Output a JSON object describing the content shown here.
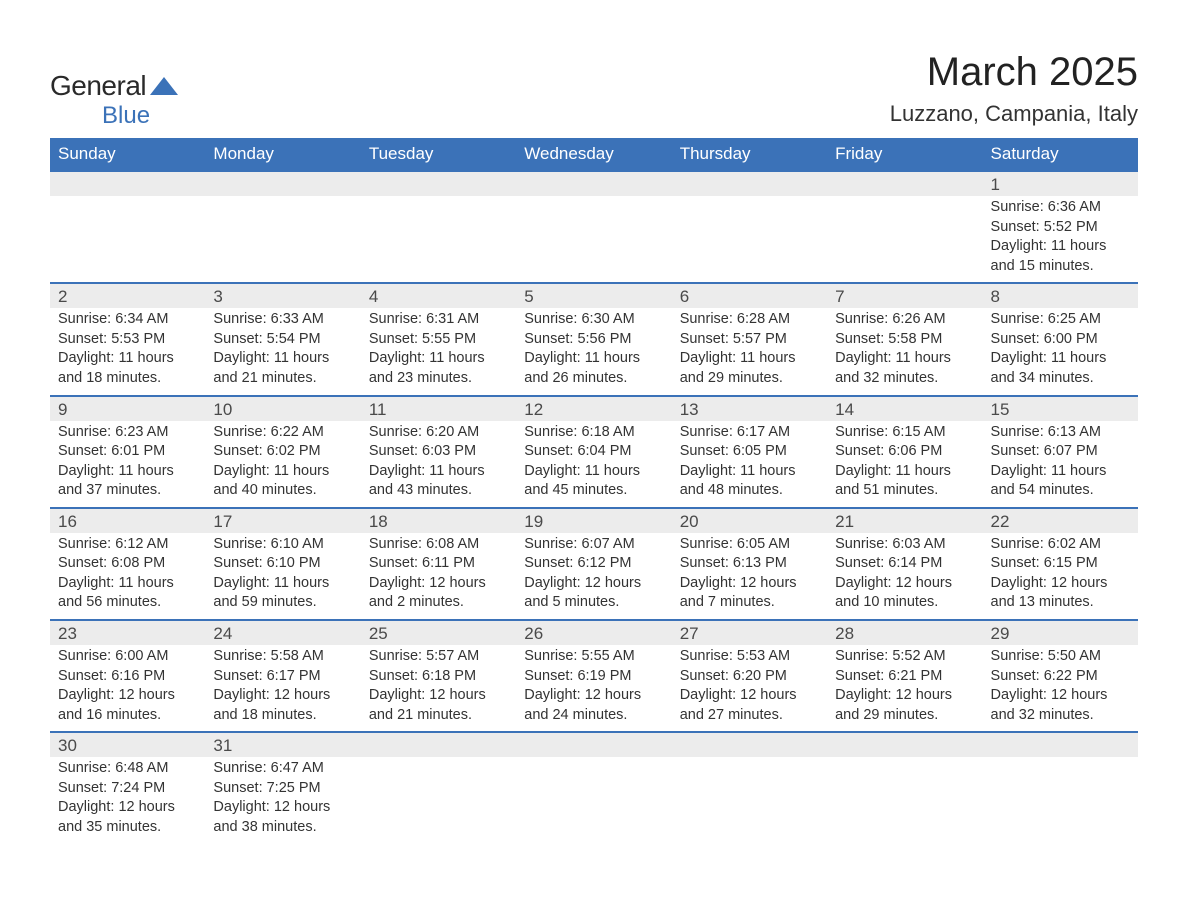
{
  "logo": {
    "textGeneral": "General",
    "textBlue": "Blue",
    "triangleColor": "#3b72b8",
    "generalColor": "#2a2a2a"
  },
  "title": "March 2025",
  "location": "Luzzano, Campania, Italy",
  "colors": {
    "headerBg": "#3b72b8",
    "headerText": "#ffffff",
    "dayBarBg": "#ececec",
    "borderTop": "#3b72b8",
    "bodyText": "#333333",
    "pageBg": "#ffffff"
  },
  "typography": {
    "titleFontSize": 40,
    "locationFontSize": 22,
    "headerFontSize": 17,
    "dayNumFontSize": 17,
    "cellFontSize": 14.5,
    "fontFamily": "Arial, Helvetica, sans-serif"
  },
  "dayHeaders": [
    "Sunday",
    "Monday",
    "Tuesday",
    "Wednesday",
    "Thursday",
    "Friday",
    "Saturday"
  ],
  "weeks": [
    [
      null,
      null,
      null,
      null,
      null,
      null,
      {
        "n": "1",
        "sunrise": "Sunrise: 6:36 AM",
        "sunset": "Sunset: 5:52 PM",
        "dl1": "Daylight: 11 hours",
        "dl2": "and 15 minutes."
      }
    ],
    [
      {
        "n": "2",
        "sunrise": "Sunrise: 6:34 AM",
        "sunset": "Sunset: 5:53 PM",
        "dl1": "Daylight: 11 hours",
        "dl2": "and 18 minutes."
      },
      {
        "n": "3",
        "sunrise": "Sunrise: 6:33 AM",
        "sunset": "Sunset: 5:54 PM",
        "dl1": "Daylight: 11 hours",
        "dl2": "and 21 minutes."
      },
      {
        "n": "4",
        "sunrise": "Sunrise: 6:31 AM",
        "sunset": "Sunset: 5:55 PM",
        "dl1": "Daylight: 11 hours",
        "dl2": "and 23 minutes."
      },
      {
        "n": "5",
        "sunrise": "Sunrise: 6:30 AM",
        "sunset": "Sunset: 5:56 PM",
        "dl1": "Daylight: 11 hours",
        "dl2": "and 26 minutes."
      },
      {
        "n": "6",
        "sunrise": "Sunrise: 6:28 AM",
        "sunset": "Sunset: 5:57 PM",
        "dl1": "Daylight: 11 hours",
        "dl2": "and 29 minutes."
      },
      {
        "n": "7",
        "sunrise": "Sunrise: 6:26 AM",
        "sunset": "Sunset: 5:58 PM",
        "dl1": "Daylight: 11 hours",
        "dl2": "and 32 minutes."
      },
      {
        "n": "8",
        "sunrise": "Sunrise: 6:25 AM",
        "sunset": "Sunset: 6:00 PM",
        "dl1": "Daylight: 11 hours",
        "dl2": "and 34 minutes."
      }
    ],
    [
      {
        "n": "9",
        "sunrise": "Sunrise: 6:23 AM",
        "sunset": "Sunset: 6:01 PM",
        "dl1": "Daylight: 11 hours",
        "dl2": "and 37 minutes."
      },
      {
        "n": "10",
        "sunrise": "Sunrise: 6:22 AM",
        "sunset": "Sunset: 6:02 PM",
        "dl1": "Daylight: 11 hours",
        "dl2": "and 40 minutes."
      },
      {
        "n": "11",
        "sunrise": "Sunrise: 6:20 AM",
        "sunset": "Sunset: 6:03 PM",
        "dl1": "Daylight: 11 hours",
        "dl2": "and 43 minutes."
      },
      {
        "n": "12",
        "sunrise": "Sunrise: 6:18 AM",
        "sunset": "Sunset: 6:04 PM",
        "dl1": "Daylight: 11 hours",
        "dl2": "and 45 minutes."
      },
      {
        "n": "13",
        "sunrise": "Sunrise: 6:17 AM",
        "sunset": "Sunset: 6:05 PM",
        "dl1": "Daylight: 11 hours",
        "dl2": "and 48 minutes."
      },
      {
        "n": "14",
        "sunrise": "Sunrise: 6:15 AM",
        "sunset": "Sunset: 6:06 PM",
        "dl1": "Daylight: 11 hours",
        "dl2": "and 51 minutes."
      },
      {
        "n": "15",
        "sunrise": "Sunrise: 6:13 AM",
        "sunset": "Sunset: 6:07 PM",
        "dl1": "Daylight: 11 hours",
        "dl2": "and 54 minutes."
      }
    ],
    [
      {
        "n": "16",
        "sunrise": "Sunrise: 6:12 AM",
        "sunset": "Sunset: 6:08 PM",
        "dl1": "Daylight: 11 hours",
        "dl2": "and 56 minutes."
      },
      {
        "n": "17",
        "sunrise": "Sunrise: 6:10 AM",
        "sunset": "Sunset: 6:10 PM",
        "dl1": "Daylight: 11 hours",
        "dl2": "and 59 minutes."
      },
      {
        "n": "18",
        "sunrise": "Sunrise: 6:08 AM",
        "sunset": "Sunset: 6:11 PM",
        "dl1": "Daylight: 12 hours",
        "dl2": "and 2 minutes."
      },
      {
        "n": "19",
        "sunrise": "Sunrise: 6:07 AM",
        "sunset": "Sunset: 6:12 PM",
        "dl1": "Daylight: 12 hours",
        "dl2": "and 5 minutes."
      },
      {
        "n": "20",
        "sunrise": "Sunrise: 6:05 AM",
        "sunset": "Sunset: 6:13 PM",
        "dl1": "Daylight: 12 hours",
        "dl2": "and 7 minutes."
      },
      {
        "n": "21",
        "sunrise": "Sunrise: 6:03 AM",
        "sunset": "Sunset: 6:14 PM",
        "dl1": "Daylight: 12 hours",
        "dl2": "and 10 minutes."
      },
      {
        "n": "22",
        "sunrise": "Sunrise: 6:02 AM",
        "sunset": "Sunset: 6:15 PM",
        "dl1": "Daylight: 12 hours",
        "dl2": "and 13 minutes."
      }
    ],
    [
      {
        "n": "23",
        "sunrise": "Sunrise: 6:00 AM",
        "sunset": "Sunset: 6:16 PM",
        "dl1": "Daylight: 12 hours",
        "dl2": "and 16 minutes."
      },
      {
        "n": "24",
        "sunrise": "Sunrise: 5:58 AM",
        "sunset": "Sunset: 6:17 PM",
        "dl1": "Daylight: 12 hours",
        "dl2": "and 18 minutes."
      },
      {
        "n": "25",
        "sunrise": "Sunrise: 5:57 AM",
        "sunset": "Sunset: 6:18 PM",
        "dl1": "Daylight: 12 hours",
        "dl2": "and 21 minutes."
      },
      {
        "n": "26",
        "sunrise": "Sunrise: 5:55 AM",
        "sunset": "Sunset: 6:19 PM",
        "dl1": "Daylight: 12 hours",
        "dl2": "and 24 minutes."
      },
      {
        "n": "27",
        "sunrise": "Sunrise: 5:53 AM",
        "sunset": "Sunset: 6:20 PM",
        "dl1": "Daylight: 12 hours",
        "dl2": "and 27 minutes."
      },
      {
        "n": "28",
        "sunrise": "Sunrise: 5:52 AM",
        "sunset": "Sunset: 6:21 PM",
        "dl1": "Daylight: 12 hours",
        "dl2": "and 29 minutes."
      },
      {
        "n": "29",
        "sunrise": "Sunrise: 5:50 AM",
        "sunset": "Sunset: 6:22 PM",
        "dl1": "Daylight: 12 hours",
        "dl2": "and 32 minutes."
      }
    ],
    [
      {
        "n": "30",
        "sunrise": "Sunrise: 6:48 AM",
        "sunset": "Sunset: 7:24 PM",
        "dl1": "Daylight: 12 hours",
        "dl2": "and 35 minutes."
      },
      {
        "n": "31",
        "sunrise": "Sunrise: 6:47 AM",
        "sunset": "Sunset: 7:25 PM",
        "dl1": "Daylight: 12 hours",
        "dl2": "and 38 minutes."
      },
      null,
      null,
      null,
      null,
      null
    ]
  ]
}
